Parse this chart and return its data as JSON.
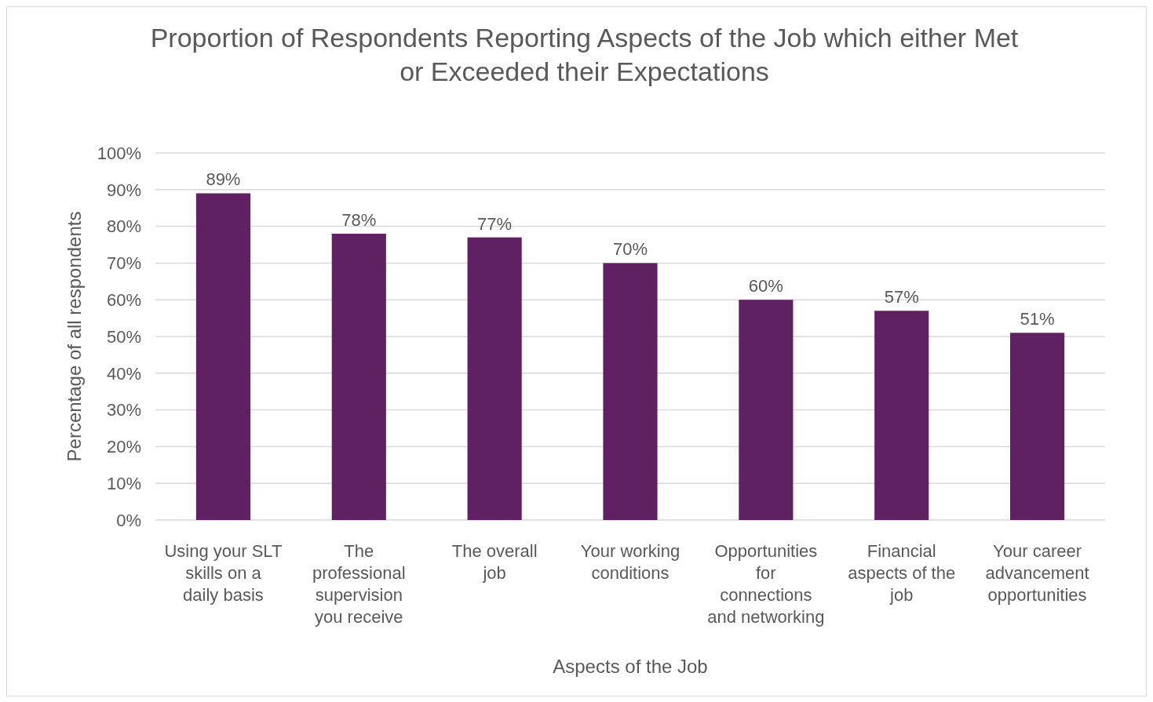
{
  "chart_data": {
    "type": "bar",
    "title": "Proportion of Respondents Reporting Aspects of the Job which either Met or Exceeded their Expectations",
    "xlabel": "Aspects of the Job",
    "ylabel": "Percentage of all respondents",
    "categories": [
      "Using your SLT skills on a daily basis",
      "The professional supervision you receive",
      "The overall job",
      "Your working conditions",
      "Opportunities for connections and networking",
      "Financial aspects of the job",
      "Your career advancement opportunities"
    ],
    "values": [
      89,
      78,
      77,
      70,
      60,
      57,
      51
    ],
    "value_labels": [
      "89%",
      "78%",
      "77%",
      "70%",
      "60%",
      "57%",
      "51%"
    ],
    "color": "#5f2161",
    "ylim": [
      0,
      100
    ],
    "yticks": [
      {
        "value": 0,
        "label": "0%"
      },
      {
        "value": 10,
        "label": "10%"
      },
      {
        "value": 20,
        "label": "20%"
      },
      {
        "value": 30,
        "label": "30%"
      },
      {
        "value": 40,
        "label": "40%"
      },
      {
        "value": 50,
        "label": "50%"
      },
      {
        "value": 60,
        "label": "60%"
      },
      {
        "value": 70,
        "label": "70%"
      },
      {
        "value": 80,
        "label": "80%"
      },
      {
        "value": 90,
        "label": "90%"
      },
      {
        "value": 100,
        "label": "100%"
      }
    ],
    "grid": "y"
  }
}
